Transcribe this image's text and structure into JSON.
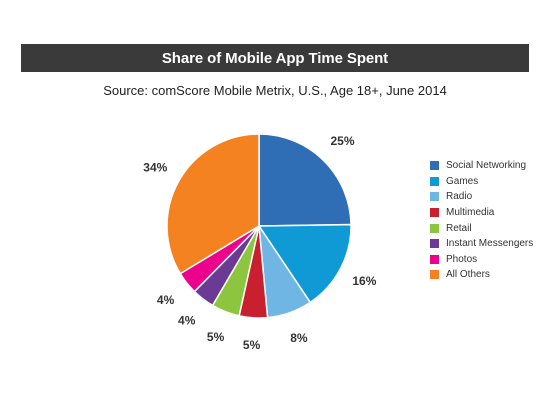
{
  "chart_data": {
    "type": "pie",
    "title": "Share of Mobile App Time Spent",
    "subtitle": "Source: comScore Mobile Metrix, U.S., Age 18+, June 2014",
    "legend_position": "right",
    "slices": [
      {
        "label": "Social Networking",
        "value": 25,
        "display": "25%",
        "color": "#2f6db4"
      },
      {
        "label": "Games",
        "value": 16,
        "display": "16%",
        "color": "#0f9ad6"
      },
      {
        "label": "Radio",
        "value": 8,
        "display": "8%",
        "color": "#6fb6e4"
      },
      {
        "label": "Multimedia",
        "value": 5,
        "display": "5%",
        "color": "#c8202f"
      },
      {
        "label": "Retail",
        "value": 5,
        "display": "5%",
        "color": "#8cc63f"
      },
      {
        "label": "Instant Messengers",
        "value": 4,
        "display": "4%",
        "color": "#6a3a94"
      },
      {
        "label": "Photos",
        "value": 4,
        "display": "4%",
        "color": "#ec008c"
      },
      {
        "label": "All Others",
        "value": 34,
        "display": "34%",
        "color": "#f58220"
      }
    ]
  }
}
